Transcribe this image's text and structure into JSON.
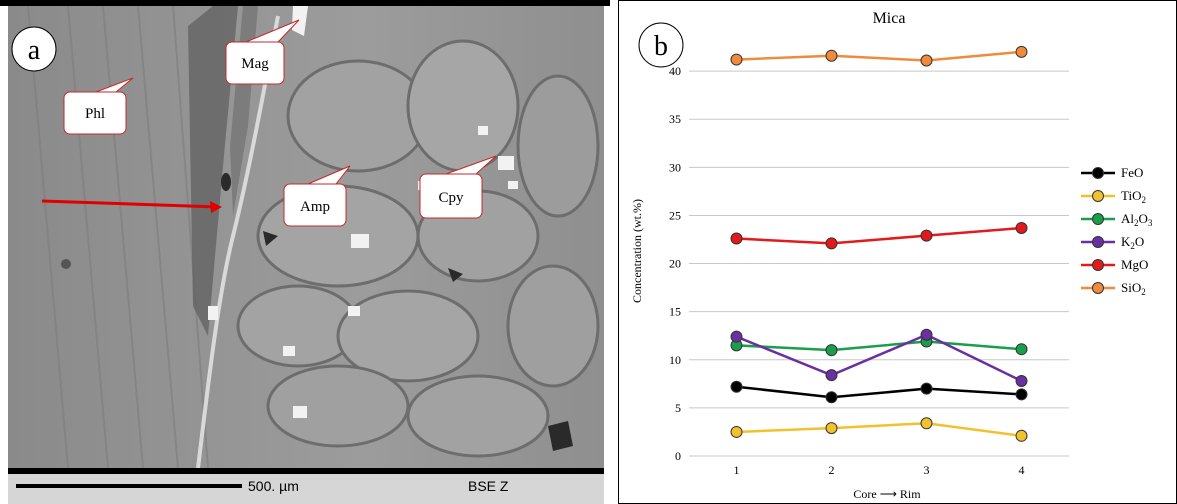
{
  "panel_a": {
    "label": "a",
    "mineral_labels": [
      {
        "text": "Mag"
      },
      {
        "text": "Phl"
      },
      {
        "text": "Amp"
      },
      {
        "text": "Cpy"
      }
    ],
    "scale_text": "500. µm",
    "detector_text": "BSE Z"
  },
  "chart_data": {
    "type": "line",
    "panel_label": "b",
    "title": "Mica",
    "ylabel": "Concentration (wt.%)",
    "xlabel": "Core ⟶ Rim",
    "x": [
      1,
      2,
      3,
      4
    ],
    "ylim": [
      0,
      45
    ],
    "yticks": [
      0,
      5,
      10,
      15,
      20,
      25,
      30,
      35,
      40
    ],
    "grid": true,
    "legend_position": "right",
    "series": [
      {
        "name": "FeO",
        "label_main": "FeO",
        "label_sub": "",
        "label_tail": "",
        "color": "#000000",
        "values": [
          7.2,
          6.1,
          7.0,
          6.4
        ]
      },
      {
        "name": "TiO2",
        "label_main": "TiO",
        "label_sub": "2",
        "label_tail": "",
        "color": "#f2c12e",
        "values": [
          2.5,
          2.9,
          3.4,
          2.1
        ]
      },
      {
        "name": "Al2O3",
        "label_main": "Al",
        "label_sub": "2",
        "label_tail": "O",
        "label_sub2": "3",
        "color": "#1a9e4b",
        "values": [
          11.5,
          11.0,
          11.9,
          11.1
        ]
      },
      {
        "name": "K2O",
        "label_main": "K",
        "label_sub": "2",
        "label_tail": "O",
        "color": "#6a2fa0",
        "values": [
          12.4,
          8.4,
          12.6,
          7.8
        ]
      },
      {
        "name": "MgO",
        "label_main": "MgO",
        "label_sub": "",
        "label_tail": "",
        "color": "#e31a1c",
        "values": [
          22.6,
          22.1,
          22.9,
          23.7
        ]
      },
      {
        "name": "SiO2",
        "label_main": "SiO",
        "label_sub": "2",
        "label_tail": "",
        "color": "#f08a3c",
        "values": [
          41.2,
          41.6,
          41.1,
          42.0
        ]
      }
    ]
  }
}
